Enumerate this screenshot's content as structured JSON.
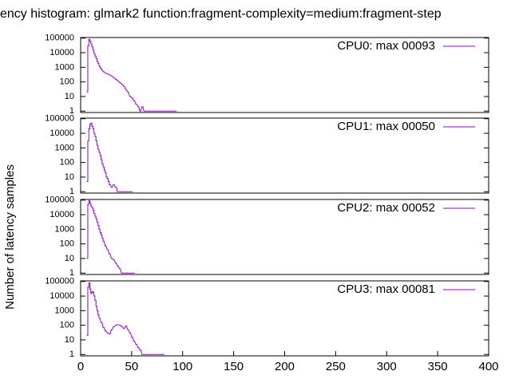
{
  "chart_data": [
    {
      "type": "line",
      "title": "ency histogram:  glmark2 function:fragment-complexity=medium:fragment-step",
      "ylabel": "Number of latency samples",
      "log_y": true,
      "legend": "top right",
      "xlim": [
        0,
        400
      ],
      "ylim": [
        0.8,
        110000
      ],
      "yticks": [
        1,
        10,
        100,
        1000,
        10000,
        100000
      ],
      "series": [
        {
          "name": "CPU0: max 00093",
          "color": "#9400d3",
          "x": [
            6,
            7,
            8,
            9,
            10,
            11,
            12,
            13,
            14,
            15,
            16,
            17,
            18,
            19,
            20,
            22,
            24,
            26,
            28,
            30,
            32,
            34,
            36,
            38,
            40,
            42,
            44,
            46,
            48,
            50,
            52,
            54,
            56,
            58,
            60,
            62,
            68,
            93
          ],
          "values": [
            20,
            30000,
            80000,
            60000,
            40000,
            25000,
            15000,
            9000,
            6000,
            4000,
            2500,
            1800,
            1200,
            900,
            700,
            500,
            400,
            350,
            300,
            250,
            200,
            150,
            120,
            90,
            70,
            50,
            30,
            20,
            10,
            8,
            5,
            3,
            2,
            1,
            2,
            1,
            1,
            1
          ]
        }
      ]
    },
    {
      "type": "line",
      "log_y": true,
      "legend": "top right",
      "xlim": [
        0,
        400
      ],
      "ylim": [
        0.8,
        110000
      ],
      "yticks": [
        1,
        10,
        100,
        1000,
        10000,
        100000
      ],
      "series": [
        {
          "name": "CPU1: max 00050",
          "color": "#9400d3",
          "x": [
            6,
            7,
            8,
            9,
            10,
            11,
            12,
            13,
            14,
            15,
            16,
            17,
            18,
            19,
            20,
            21,
            22,
            23,
            24,
            25,
            26,
            27,
            28,
            30,
            32,
            34,
            36,
            38,
            40,
            42,
            44,
            46,
            50
          ],
          "values": [
            5,
            3000,
            20000,
            40000,
            50000,
            30000,
            20000,
            10000,
            6000,
            3000,
            1500,
            800,
            500,
            300,
            150,
            80,
            50,
            30,
            20,
            10,
            8,
            5,
            3,
            2,
            3,
            2,
            1,
            1,
            1,
            1,
            1,
            1,
            1
          ]
        }
      ]
    },
    {
      "type": "line",
      "log_y": true,
      "legend": "top right",
      "xlim": [
        0,
        400
      ],
      "ylim": [
        0.8,
        110000
      ],
      "yticks": [
        1,
        10,
        100,
        1000,
        10000,
        100000
      ],
      "series": [
        {
          "name": "CPU2: max 00052",
          "color": "#9400d3",
          "x": [
            6,
            7,
            8,
            9,
            10,
            11,
            12,
            13,
            14,
            15,
            16,
            17,
            18,
            19,
            20,
            21,
            22,
            24,
            26,
            28,
            30,
            32,
            34,
            36,
            38,
            40,
            42,
            48,
            52
          ],
          "values": [
            10,
            50000,
            90000,
            60000,
            40000,
            30000,
            20000,
            12000,
            8000,
            5000,
            3000,
            1800,
            1000,
            600,
            400,
            250,
            150,
            70,
            40,
            20,
            10,
            8,
            5,
            3,
            2,
            1,
            1,
            1,
            1
          ]
        }
      ]
    },
    {
      "type": "line",
      "log_y": true,
      "legend": "top right",
      "xlim": [
        0,
        400
      ],
      "ylim": [
        0.8,
        110000
      ],
      "yticks": [
        1,
        10,
        100,
        1000,
        10000,
        100000
      ],
      "xticks": [
        0,
        50,
        100,
        150,
        200,
        250,
        300,
        350,
        400
      ],
      "series": [
        {
          "name": "CPU3: max 00081",
          "color": "#9400d3",
          "x": [
            6,
            7,
            8,
            9,
            10,
            11,
            12,
            13,
            14,
            15,
            16,
            17,
            18,
            20,
            22,
            24,
            26,
            28,
            30,
            32,
            34,
            36,
            38,
            40,
            42,
            44,
            46,
            48,
            50,
            52,
            54,
            56,
            58,
            60,
            62,
            70,
            75,
            81
          ],
          "values": [
            20,
            40000,
            80000,
            30000,
            15000,
            20000,
            18000,
            10000,
            5000,
            2000,
            1000,
            500,
            300,
            150,
            70,
            40,
            30,
            25,
            50,
            80,
            100,
            110,
            100,
            80,
            60,
            90,
            50,
            30,
            15,
            8,
            5,
            3,
            2,
            1,
            1,
            1,
            1,
            1
          ]
        }
      ]
    }
  ]
}
